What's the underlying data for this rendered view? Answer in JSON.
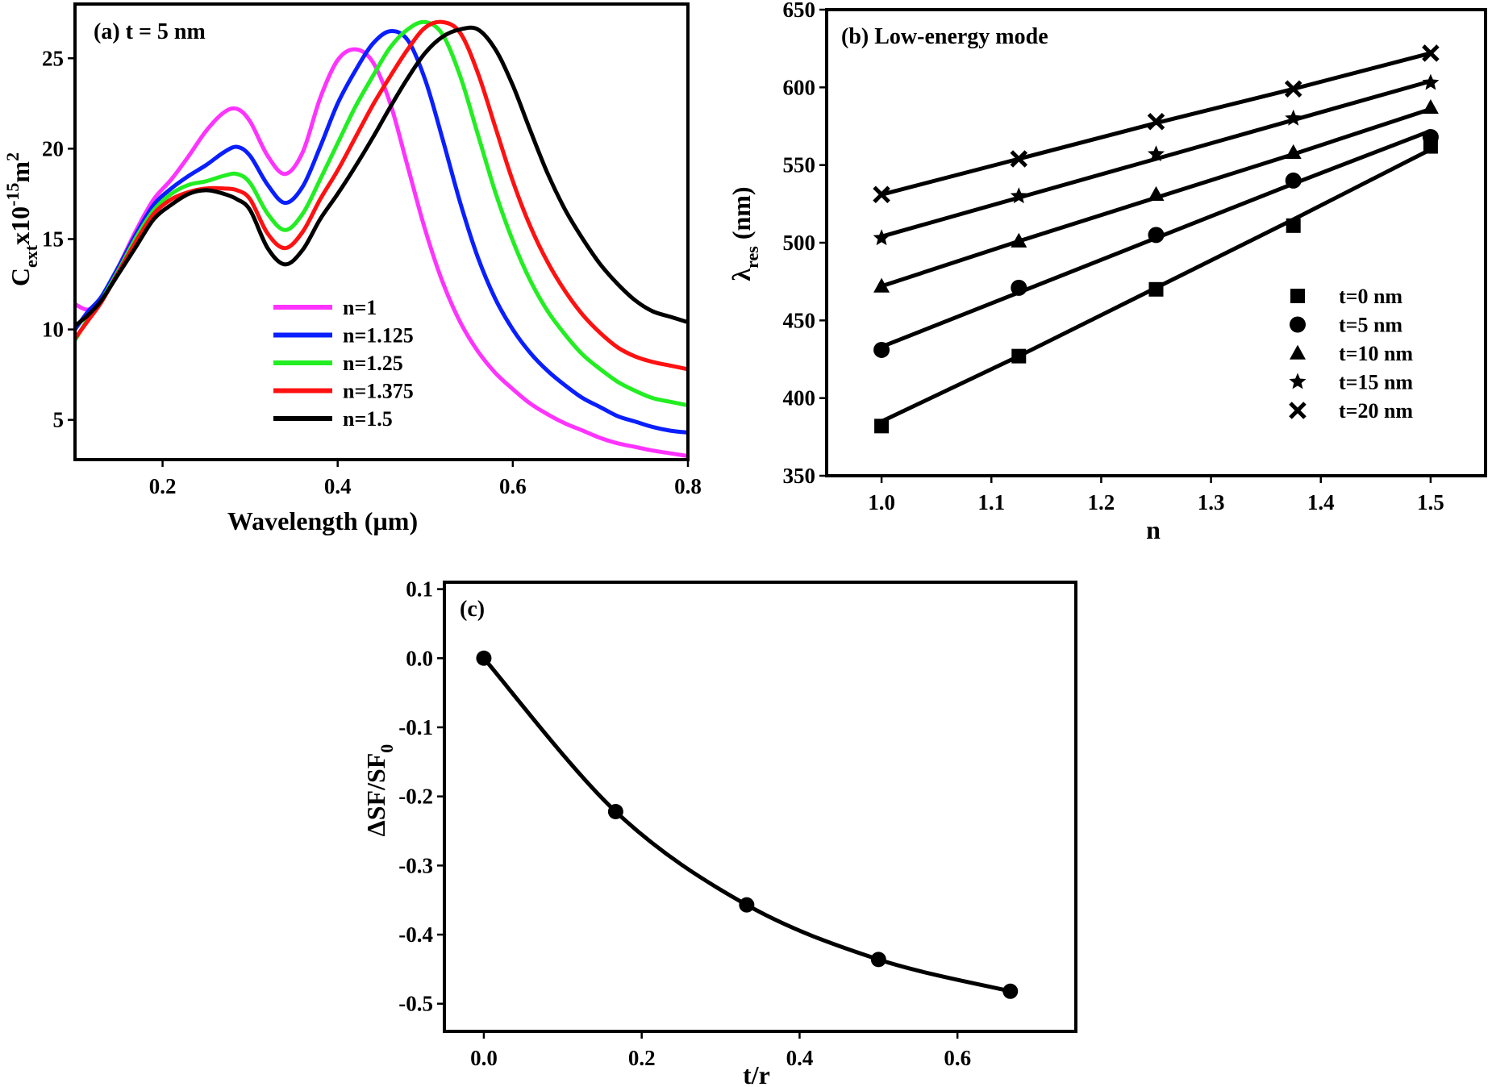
{
  "chart_data": [
    {
      "id": "a",
      "type": "line",
      "panel_label": "(a) t = 5 nm",
      "xlabel": "Wavelength (µm)",
      "ylabel": "C",
      "ylabel_sub": "ext",
      "ylabel_rest": "x10",
      "ylabel_sup": "-15",
      "ylabel_unit": "m",
      "ylabel_unit_sup": "2",
      "xlim": [
        0.1,
        0.8
      ],
      "ylim": [
        2.8,
        28.0
      ],
      "xticks": [
        0.2,
        0.4,
        0.6,
        0.8
      ],
      "xtick_labels": [
        "0.2",
        "0.4",
        "0.6",
        "0.8"
      ],
      "yticks": [
        5,
        10,
        15,
        20,
        25
      ],
      "ytick_labels": [
        "5",
        "10",
        "15",
        "20",
        "25"
      ],
      "grid": false,
      "legend_position": "lower-center",
      "series": [
        {
          "name": "n=1",
          "color": "#ff33ff",
          "x": [
            0.1,
            0.115,
            0.13,
            0.15,
            0.17,
            0.19,
            0.21,
            0.23,
            0.25,
            0.27,
            0.285,
            0.3,
            0.32,
            0.34,
            0.36,
            0.38,
            0.4,
            0.42,
            0.44,
            0.46,
            0.48,
            0.5,
            0.52,
            0.54,
            0.56,
            0.58,
            0.6,
            0.62,
            0.64,
            0.66,
            0.68,
            0.7,
            0.72,
            0.74,
            0.76,
            0.78,
            0.8
          ],
          "y": [
            11.4,
            11.1,
            11.6,
            13.5,
            15.5,
            17.2,
            18.3,
            19.6,
            21.0,
            22.0,
            22.2,
            21.5,
            19.6,
            18.6,
            19.8,
            22.8,
            24.9,
            25.5,
            24.8,
            22.5,
            19.0,
            15.5,
            12.6,
            10.4,
            8.8,
            7.6,
            6.7,
            5.9,
            5.3,
            4.8,
            4.4,
            4.0,
            3.7,
            3.5,
            3.3,
            3.15,
            3.0
          ]
        },
        {
          "name": "n=1.125",
          "color": "#0a1fff",
          "x": [
            0.1,
            0.115,
            0.13,
            0.15,
            0.17,
            0.19,
            0.21,
            0.23,
            0.25,
            0.27,
            0.285,
            0.3,
            0.32,
            0.34,
            0.36,
            0.38,
            0.4,
            0.42,
            0.44,
            0.46,
            0.48,
            0.5,
            0.52,
            0.54,
            0.56,
            0.58,
            0.6,
            0.62,
            0.64,
            0.66,
            0.68,
            0.7,
            0.72,
            0.74,
            0.76,
            0.78,
            0.8
          ],
          "y": [
            10.0,
            11.0,
            11.8,
            13.5,
            15.3,
            16.9,
            17.8,
            18.5,
            19.1,
            19.8,
            20.1,
            19.6,
            18.0,
            17.0,
            17.9,
            20.1,
            22.5,
            24.3,
            25.8,
            26.5,
            26.0,
            23.8,
            20.5,
            17.0,
            14.0,
            11.7,
            10.0,
            8.7,
            7.7,
            6.9,
            6.2,
            5.7,
            5.2,
            4.9,
            4.6,
            4.4,
            4.3
          ]
        },
        {
          "name": "n=1.25",
          "color": "#22ee22",
          "x": [
            0.1,
            0.115,
            0.13,
            0.15,
            0.17,
            0.19,
            0.21,
            0.23,
            0.25,
            0.27,
            0.285,
            0.3,
            0.32,
            0.34,
            0.36,
            0.38,
            0.4,
            0.42,
            0.44,
            0.46,
            0.48,
            0.5,
            0.52,
            0.54,
            0.56,
            0.58,
            0.6,
            0.62,
            0.64,
            0.66,
            0.68,
            0.7,
            0.72,
            0.74,
            0.76,
            0.78,
            0.8
          ],
          "y": [
            9.4,
            10.6,
            11.6,
            13.3,
            15.1,
            16.6,
            17.5,
            18.0,
            18.2,
            18.5,
            18.6,
            18.1,
            16.4,
            15.5,
            16.4,
            18.3,
            20.3,
            22.3,
            24.0,
            25.6,
            26.6,
            27.0,
            26.3,
            24.0,
            20.8,
            17.6,
            14.9,
            12.7,
            11.0,
            9.7,
            8.6,
            7.8,
            7.1,
            6.6,
            6.2,
            6.0,
            5.8
          ]
        },
        {
          "name": "n=1.375",
          "color": "#ff1111",
          "x": [
            0.1,
            0.115,
            0.13,
            0.15,
            0.17,
            0.19,
            0.21,
            0.23,
            0.25,
            0.27,
            0.285,
            0.3,
            0.32,
            0.34,
            0.36,
            0.38,
            0.4,
            0.42,
            0.44,
            0.46,
            0.48,
            0.5,
            0.52,
            0.54,
            0.56,
            0.58,
            0.6,
            0.62,
            0.64,
            0.66,
            0.68,
            0.7,
            0.72,
            0.74,
            0.76,
            0.78,
            0.8
          ],
          "y": [
            9.5,
            10.5,
            11.5,
            13.2,
            14.9,
            16.4,
            17.2,
            17.6,
            17.8,
            17.8,
            17.7,
            17.2,
            15.3,
            14.5,
            15.4,
            17.2,
            18.8,
            20.6,
            22.4,
            24.0,
            25.5,
            26.7,
            27.0,
            26.4,
            24.2,
            21.2,
            18.2,
            15.7,
            13.7,
            12.1,
            10.8,
            9.8,
            9.0,
            8.5,
            8.2,
            8.0,
            7.8
          ]
        },
        {
          "name": "n=1.5",
          "color": "#000000",
          "x": [
            0.1,
            0.115,
            0.13,
            0.15,
            0.17,
            0.19,
            0.21,
            0.23,
            0.25,
            0.27,
            0.285,
            0.3,
            0.32,
            0.34,
            0.36,
            0.38,
            0.4,
            0.42,
            0.44,
            0.46,
            0.48,
            0.5,
            0.52,
            0.54,
            0.56,
            0.58,
            0.6,
            0.62,
            0.64,
            0.66,
            0.68,
            0.7,
            0.72,
            0.74,
            0.76,
            0.78,
            0.8
          ],
          "y": [
            10.2,
            10.8,
            11.6,
            13.1,
            14.6,
            16.1,
            16.9,
            17.5,
            17.7,
            17.5,
            17.2,
            16.6,
            14.5,
            13.6,
            14.4,
            16.1,
            17.5,
            19.0,
            20.6,
            22.3,
            23.9,
            25.3,
            26.2,
            26.6,
            26.6,
            25.5,
            23.5,
            21.0,
            18.6,
            16.6,
            15.0,
            13.6,
            12.5,
            11.6,
            11.0,
            10.7,
            10.4
          ]
        }
      ]
    },
    {
      "id": "b",
      "type": "scatter",
      "panel_label": "(b) Low-energy mode",
      "xlabel": "n",
      "ylabel": "λ",
      "ylabel_sub": "res",
      "ylabel_rest": " (nm)",
      "xlim": [
        0.95,
        1.55
      ],
      "ylim": [
        350,
        650
      ],
      "xticks": [
        1.0,
        1.1,
        1.2,
        1.3,
        1.4,
        1.5
      ],
      "xtick_labels": [
        "1.0",
        "1.1",
        "1.2",
        "1.3",
        "1.4",
        "1.5"
      ],
      "yticks": [
        350,
        400,
        450,
        500,
        550,
        600,
        650
      ],
      "ytick_labels": [
        "350",
        "400",
        "450",
        "500",
        "550",
        "600",
        "650"
      ],
      "grid": false,
      "legend_position": "lower-right",
      "x": [
        1.0,
        1.125,
        1.25,
        1.375,
        1.5
      ],
      "series": [
        {
          "name": "t=0 nm",
          "marker": "square",
          "values": [
            382,
            427,
            470,
            511,
            562
          ],
          "fit": [
            385,
            427,
            471,
            515,
            560
          ]
        },
        {
          "name": "t=5 nm",
          "marker": "circle",
          "values": [
            431,
            471,
            505,
            540,
            568
          ],
          "fit": [
            433,
            468,
            503,
            538,
            572
          ]
        },
        {
          "name": "t=10 nm",
          "marker": "triangle",
          "values": [
            472,
            501,
            531,
            558,
            587
          ],
          "fit": [
            472,
            501,
            529,
            557,
            586
          ]
        },
        {
          "name": "t=15 nm",
          "marker": "star",
          "values": [
            503,
            530,
            557,
            580,
            603
          ],
          "fit": [
            504,
            529,
            554,
            579,
            604
          ]
        },
        {
          "name": "t=20 nm",
          "marker": "cross",
          "values": [
            531,
            554,
            578,
            599,
            622
          ],
          "fit": [
            531,
            554,
            577,
            599,
            622
          ]
        }
      ]
    },
    {
      "id": "c",
      "type": "line",
      "panel_label": "(c)",
      "xlabel": "t/r",
      "ylabel": "ΔSF/SF",
      "ylabel_sub": "0",
      "xlim": [
        -0.05,
        0.75
      ],
      "ylim": [
        -0.54,
        0.11
      ],
      "xticks": [
        0.0,
        0.2,
        0.4,
        0.6
      ],
      "xtick_labels": [
        "0.0",
        "0.2",
        "0.4",
        "0.6"
      ],
      "yticks": [
        0.1,
        0.0,
        -0.1,
        -0.2,
        -0.3,
        -0.4,
        -0.5
      ],
      "ytick_labels": [
        "0.1",
        "0.0",
        "-0.1",
        "-0.2",
        "-0.3",
        "-0.4",
        "-0.5"
      ],
      "grid": false,
      "x": [
        0.0,
        0.167,
        0.333,
        0.5,
        0.667
      ],
      "values": [
        0.0,
        -0.222,
        -0.357,
        -0.436,
        -0.482
      ]
    }
  ]
}
